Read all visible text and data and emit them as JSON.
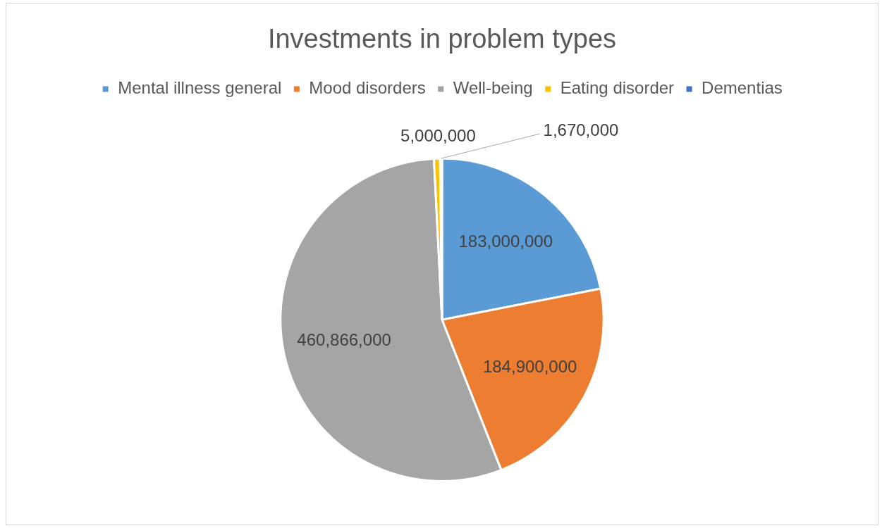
{
  "chart_data": {
    "type": "pie",
    "title": "Investments in problem types",
    "categories": [
      "Mental illness general",
      "Mood disorders",
      "Well-being",
      "Eating disorder",
      "Dementias"
    ],
    "values": [
      183000000,
      184900000,
      460866000,
      5000000,
      1670000
    ],
    "colors": [
      "#5b9bd5",
      "#ed7d31",
      "#a5a5a5",
      "#ffc000",
      "#4472c4"
    ],
    "value_labels": [
      "183,000,000",
      "184,900,000",
      "460,866,000",
      "5,000,000",
      "1,670,000"
    ],
    "legend": "top"
  }
}
